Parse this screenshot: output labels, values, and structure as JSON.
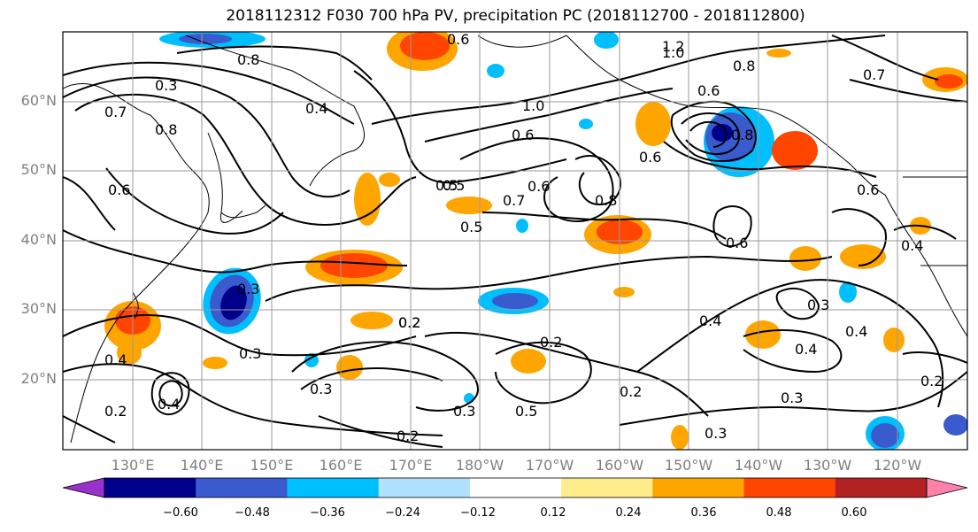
{
  "title": "2018112312 F030 700 hPa PV, precipitation PC (2018112700 - 2018112800)",
  "map": {
    "lat_labels": [
      "60°N",
      "50°N",
      "40°N",
      "30°N",
      "20°N"
    ],
    "lon_labels": [
      "130°E",
      "140°E",
      "150°E",
      "160°E",
      "170°E",
      "180°W",
      "170°W",
      "160°W",
      "150°W",
      "140°W",
      "130°W",
      "120°W"
    ],
    "grid": true,
    "contour_labels": [
      "0.8",
      "0.3",
      "0.7",
      "0.8",
      "0.6",
      "0.4",
      "0.5",
      "0.3",
      "0.3",
      "0.2",
      "0.4",
      "0.3",
      "0.2",
      "0.4",
      "0.3",
      "0.2",
      "0.6",
      "1.2",
      "1.0",
      "0.8",
      "1.0",
      "0.6",
      "0.6",
      "0.5",
      "0.7",
      "0.6",
      "0.8",
      "0.5",
      "0.6",
      "0.8",
      "0.6",
      "0.4",
      "0.2",
      "0.3",
      "0.2",
      "0.4",
      "0.5",
      "0.3",
      "0.2",
      "0.2",
      "0.7",
      "0.6",
      "0.4",
      "0.3",
      "0.4"
    ]
  },
  "colorbar": {
    "ticks": [
      "−0.60",
      "−0.48",
      "−0.36",
      "−0.24",
      "−0.12",
      "0.12",
      "0.24",
      "0.36",
      "0.48",
      "0.60"
    ],
    "colors": [
      "#9932cc",
      "#00008b",
      "#3a5bcd",
      "#00bfff",
      "#b0e2ff",
      "#ffffff",
      "#ffec8b",
      "#ffa500",
      "#ff4500",
      "#b22222",
      "#ff82ab"
    ]
  }
}
